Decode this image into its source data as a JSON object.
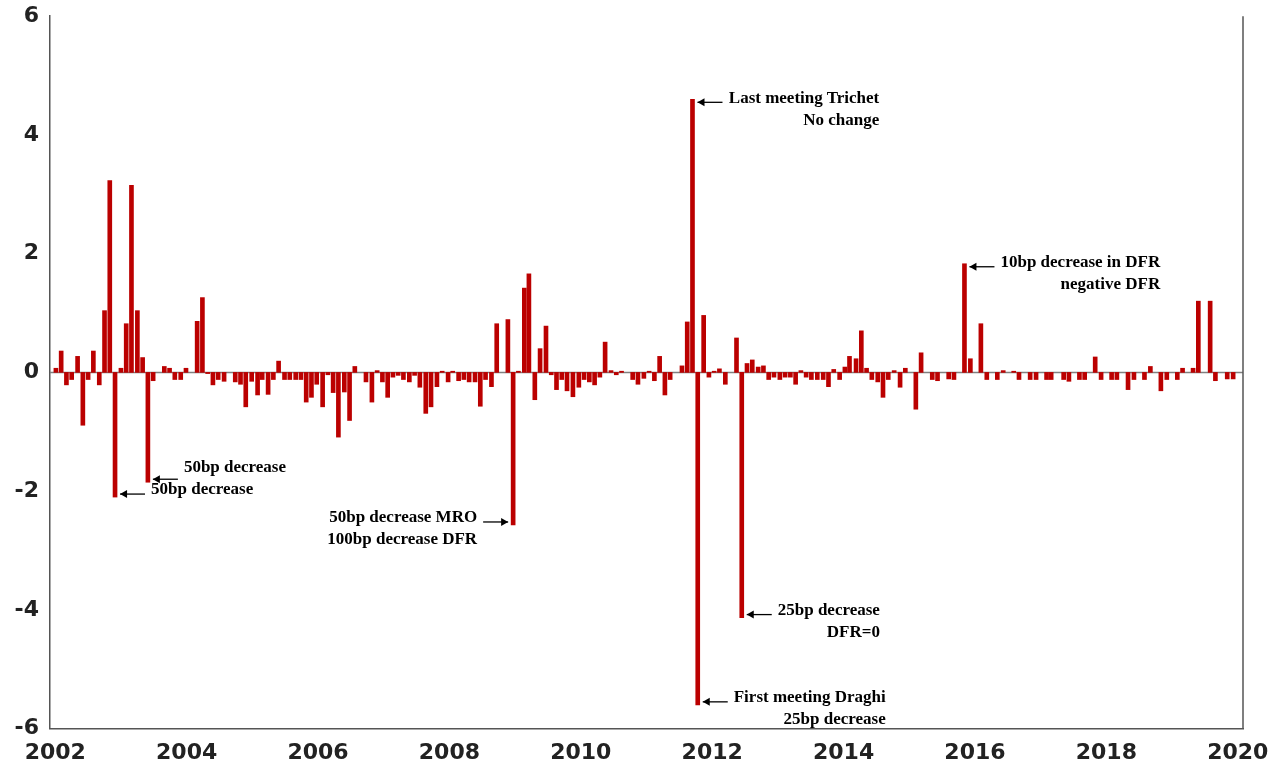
{
  "chart_data": {
    "type": "bar",
    "color": "#bb0000",
    "x": [
      2002.01,
      2002.09,
      2002.17,
      2002.25,
      2002.34,
      2002.42,
      2002.5,
      2002.58,
      2002.67,
      2002.75,
      2002.83,
      2002.91,
      2003.0,
      2003.08,
      2003.16,
      2003.25,
      2003.33,
      2003.41,
      2003.49,
      2003.66,
      2003.74,
      2003.82,
      2003.91,
      2003.99,
      2004.16,
      2004.24,
      2004.32,
      2004.4,
      2004.48,
      2004.57,
      2004.74,
      2004.82,
      2004.9,
      2004.99,
      2005.08,
      2005.15,
      2005.24,
      2005.32,
      2005.4,
      2005.49,
      2005.57,
      2005.66,
      2005.74,
      2005.82,
      2005.9,
      2005.98,
      2006.07,
      2006.15,
      2006.23,
      2006.31,
      2006.4,
      2006.48,
      2006.56,
      2006.73,
      2006.82,
      2006.9,
      2006.98,
      2007.06,
      2007.14,
      2007.22,
      2007.3,
      2007.39,
      2007.47,
      2007.55,
      2007.64,
      2007.72,
      2007.81,
      2007.89,
      2007.98,
      2008.05,
      2008.14,
      2008.22,
      2008.3,
      2008.39,
      2008.47,
      2008.55,
      2008.64,
      2008.72,
      2008.89,
      2008.97,
      2009.05,
      2009.14,
      2009.21,
      2009.3,
      2009.38,
      2009.47,
      2009.55,
      2009.63,
      2009.71,
      2009.79,
      2009.88,
      2009.97,
      2010.05,
      2010.13,
      2010.21,
      2010.29,
      2010.37,
      2010.46,
      2010.54,
      2010.62,
      2010.79,
      2010.87,
      2010.96,
      2011.04,
      2011.12,
      2011.2,
      2011.28,
      2011.36,
      2011.54,
      2011.62,
      2011.7,
      2011.78,
      2011.87,
      2011.95,
      2012.03,
      2012.11,
      2012.2,
      2012.37,
      2012.45,
      2012.53,
      2012.61,
      2012.7,
      2012.78,
      2012.86,
      2012.94,
      2013.03,
      2013.11,
      2013.19,
      2013.27,
      2013.35,
      2013.43,
      2013.51,
      2013.6,
      2013.69,
      2013.77,
      2013.85,
      2013.94,
      2014.02,
      2014.09,
      2014.19,
      2014.27,
      2014.35,
      2014.43,
      2014.52,
      2014.6,
      2014.68,
      2014.77,
      2014.86,
      2014.94,
      2015.1,
      2015.18,
      2015.35,
      2015.43,
      2015.6,
      2015.68,
      2015.84,
      2015.93,
      2016.09,
      2016.18,
      2016.34,
      2016.43,
      2016.59,
      2016.67,
      2016.84,
      2016.93,
      2017.09,
      2017.16,
      2017.35,
      2017.43,
      2017.59,
      2017.67,
      2017.83,
      2017.92,
      2018.08,
      2018.16,
      2018.33,
      2018.42,
      2018.58,
      2018.67,
      2018.83,
      2018.92,
      2019.08,
      2019.16,
      2019.32,
      2019.4,
      2019.58,
      2019.66,
      2019.84,
      2019.93
    ],
    "values": [
      0.07,
      0.36,
      -0.21,
      -0.12,
      0.27,
      -0.89,
      -0.12,
      0.36,
      -0.21,
      1.04,
      3.23,
      -2.1,
      0.07,
      0.82,
      3.15,
      1.04,
      0.25,
      -1.85,
      -0.14,
      0.1,
      0.07,
      -0.12,
      -0.12,
      0.07,
      0.86,
      1.26,
      -0.02,
      -0.21,
      -0.12,
      -0.15,
      -0.16,
      -0.2,
      -0.58,
      -0.15,
      -0.38,
      -0.12,
      -0.37,
      -0.12,
      0.19,
      -0.12,
      -0.12,
      -0.12,
      -0.12,
      -0.5,
      -0.42,
      -0.2,
      -0.58,
      -0.04,
      -0.34,
      -1.09,
      -0.33,
      -0.81,
      0.1,
      -0.16,
      -0.5,
      0.03,
      -0.16,
      -0.42,
      -0.08,
      -0.05,
      -0.12,
      -0.16,
      -0.05,
      -0.25,
      -0.69,
      -0.58,
      -0.24,
      0.02,
      -0.16,
      0.02,
      -0.14,
      -0.12,
      -0.16,
      -0.16,
      -0.57,
      -0.12,
      -0.24,
      0.82,
      0.89,
      -2.57,
      0.02,
      1.42,
      1.66,
      -0.46,
      0.4,
      0.78,
      -0.04,
      -0.29,
      -0.12,
      -0.31,
      -0.41,
      -0.25,
      -0.12,
      -0.16,
      -0.21,
      -0.08,
      0.51,
      0.03,
      -0.04,
      0.02,
      -0.12,
      -0.2,
      -0.1,
      0.02,
      -0.14,
      0.27,
      -0.38,
      -0.12,
      0.11,
      0.85,
      4.6,
      -5.6,
      0.96,
      -0.08,
      0.02,
      0.06,
      -0.2,
      0.58,
      -4.13,
      0.15,
      0.21,
      0.09,
      0.11,
      -0.12,
      -0.08,
      -0.12,
      -0.08,
      -0.08,
      -0.2,
      0.03,
      -0.08,
      -0.12,
      -0.12,
      -0.12,
      -0.24,
      0.05,
      -0.12,
      0.09,
      0.27,
      0.23,
      0.7,
      0.07,
      -0.12,
      -0.16,
      -0.42,
      -0.12,
      0.03,
      -0.25,
      0.07,
      -0.62,
      0.33,
      -0.12,
      -0.14,
      -0.11,
      -0.12,
      1.83,
      0.23,
      0.82,
      -0.12,
      -0.12,
      0.03,
      0.02,
      -0.12,
      -0.12,
      -0.12,
      -0.12,
      -0.12,
      -0.12,
      -0.15,
      -0.12,
      -0.12,
      0.26,
      -0.12,
      -0.12,
      -0.12,
      -0.29,
      -0.12,
      -0.12,
      0.1,
      -0.31,
      -0.12,
      -0.12,
      0.07,
      0.07,
      1.2,
      1.2,
      -0.14,
      -0.11,
      -0.11
    ],
    "xlim": [
      2001.92,
      2020.08
    ],
    "xticks": [
      2002,
      2004,
      2006,
      2008,
      2010,
      2012,
      2014,
      2016,
      2018,
      2020
    ],
    "ylim": [
      -6,
      6
    ],
    "yticks": [
      -6,
      -4,
      -2,
      0,
      2,
      4,
      6
    ],
    "ref_lines": [
      {
        "axis": "y",
        "value": 0,
        "color": "#808080"
      }
    ],
    "annotations": [
      {
        "text": "Last meeting Trichet\nNo change",
        "x": 2011.7,
        "y": 4.6
      },
      {
        "text": "50bp decrease",
        "x": 2002.91,
        "y": -2.1
      },
      {
        "text": "50bp decrease",
        "x": 2003.41,
        "y": -1.85
      },
      {
        "text": "50bp decrease MRO\n100bp decrease DFR",
        "x": 2008.97,
        "y": -2.57
      },
      {
        "text": "First meeting Draghi\n25bp decrease",
        "x": 2011.78,
        "y": -5.6
      },
      {
        "text": "25bp decrease\nDFR=0",
        "x": 2012.45,
        "y": -4.13
      },
      {
        "text": "10bp decrease in DFR\nnegative DFR",
        "x": 2015.84,
        "y": 1.83
      }
    ]
  }
}
